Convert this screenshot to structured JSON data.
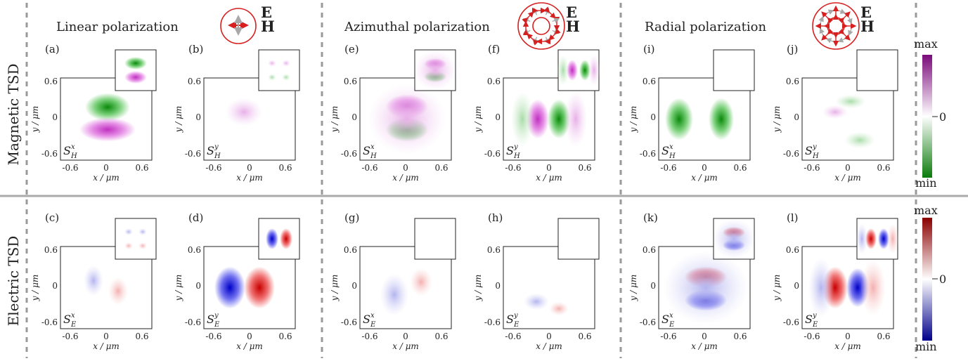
{
  "columns": [
    {
      "title": "Linear polarization"
    },
    {
      "title": "Azimuthal polarization"
    },
    {
      "title": "Radial polarization"
    }
  ],
  "field_legend": {
    "e_label": "E",
    "h_label": "H",
    "e_color": "#d62020",
    "h_color": "#a8a8a8"
  },
  "row_labels": {
    "magnetic": "Magnetic TSD",
    "electric": "Electric TSD"
  },
  "colorbars": {
    "magnetic": {
      "max_label": "max",
      "zero_label": "0",
      "min_label": "min",
      "top_color": "#7a0a7a",
      "mid_color": "#ffffff",
      "bottom_color": "#0a7a0a"
    },
    "electric": {
      "max_label": "max",
      "zero_label": "0",
      "min_label": "min",
      "top_color": "#8a0000",
      "mid_color": "#ffffff",
      "bottom_color": "#00008a"
    }
  },
  "axes": {
    "x_label": "x / μm",
    "y_label": "y / μm",
    "ticks": [
      "-0.6",
      "0",
      "0.6"
    ]
  },
  "panels": [
    {
      "letter": "(a)",
      "component": {
        "base": "S",
        "sup": "x",
        "sub": "H"
      }
    },
    {
      "letter": "(b)",
      "component": {
        "base": "S",
        "sup": "y",
        "sub": "H"
      }
    },
    {
      "letter": "(c)",
      "component": {
        "base": "S",
        "sup": "x",
        "sub": "E"
      }
    },
    {
      "letter": "(d)",
      "component": {
        "base": "S",
        "sup": "y",
        "sub": "E"
      }
    },
    {
      "letter": "(e)",
      "component": {
        "base": "S",
        "sup": "x",
        "sub": "H"
      }
    },
    {
      "letter": "(f)",
      "component": {
        "base": "S",
        "sup": "y",
        "sub": "H"
      }
    },
    {
      "letter": "(g)",
      "component": {
        "base": "S",
        "sup": "x",
        "sub": "E"
      }
    },
    {
      "letter": "(h)",
      "component": {
        "base": "S",
        "sup": "y",
        "sub": "E"
      }
    },
    {
      "letter": "(i)",
      "component": {
        "base": "S",
        "sup": "x",
        "sub": "H"
      }
    },
    {
      "letter": "(j)",
      "component": {
        "base": "S",
        "sup": "y",
        "sub": "H"
      }
    },
    {
      "letter": "(k)",
      "component": {
        "base": "S",
        "sup": "x",
        "sub": "E"
      }
    },
    {
      "letter": "(l)",
      "component": {
        "base": "S",
        "sup": "y",
        "sub": "E"
      }
    }
  ]
}
